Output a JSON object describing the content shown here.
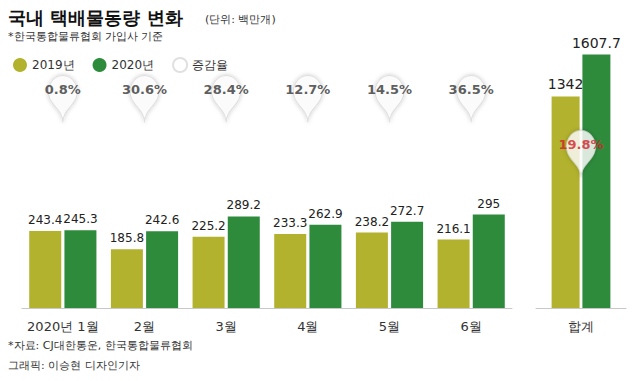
{
  "chart_data": [
    {
      "type": "bar",
      "title": "국내 택배물동량 변화",
      "subtitle": "(단위: 백만개)",
      "annotations": [
        "*한국통합물류협회 가입사 기준",
        "*자료: CJ대한통운, 한국통합물류협회",
        "그래픽: 이승현 디자인기자"
      ],
      "categories": [
        "2020년 1월",
        "2월",
        "3월",
        "4월",
        "5월",
        "6월"
      ],
      "series": [
        {
          "name": "2019년",
          "color": "#b2b22e",
          "values": [
            243.4,
            185.8,
            225.2,
            233.3,
            238.2,
            216.1
          ]
        },
        {
          "name": "2020년",
          "color": "#2e8b3c",
          "values": [
            245.3,
            242.6,
            289.2,
            262.9,
            272.7,
            295
          ]
        },
        {
          "name": "증감율",
          "type": "label",
          "color": "#ffffff",
          "values": [
            0.8,
            30.6,
            28.4,
            12.7,
            14.5,
            36.5
          ],
          "value_labels": [
            "0.8%",
            "30.6%",
            "28.4%",
            "12.7%",
            "14.5%",
            "36.5%"
          ]
        }
      ],
      "ylim": [
        0,
        600
      ],
      "yticks": [
        0,
        600
      ],
      "grid": false,
      "tick_labels": false,
      "data_labels": true,
      "legend": "top-left"
    },
    {
      "type": "bar",
      "categories": [
        "합계"
      ],
      "series": [
        {
          "name": "2019년",
          "color": "#b2b22e",
          "values": [
            1342
          ]
        },
        {
          "name": "2020년",
          "color": "#2e8b3c",
          "values": [
            1607.7
          ]
        },
        {
          "name": "증감율",
          "type": "label",
          "color": "#ffffff",
          "values": [
            19.8
          ],
          "value_labels": [
            "19.8%"
          ]
        }
      ],
      "ylim": [
        0,
        1700
      ],
      "yticks": [
        0,
        1700
      ],
      "grid": false,
      "tick_labels": false,
      "data_labels": true
    }
  ]
}
